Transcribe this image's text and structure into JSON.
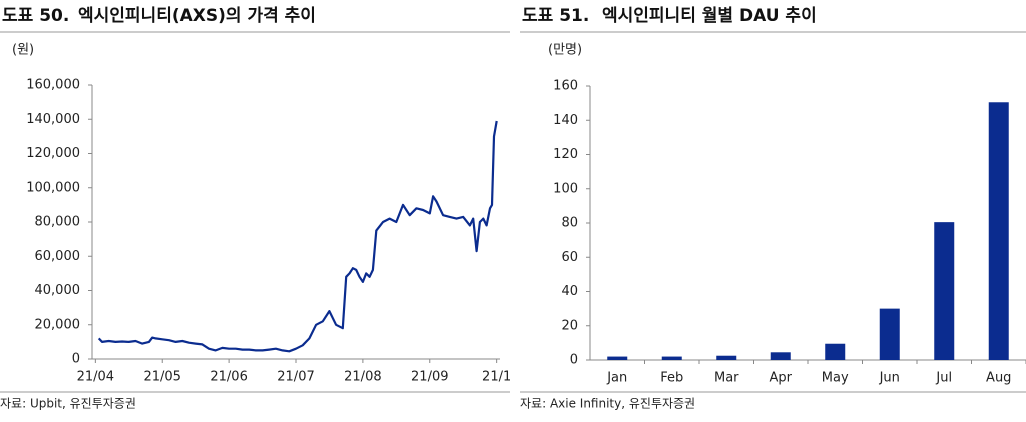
{
  "chart_data": [
    {
      "type": "line",
      "figure": "도표 50.",
      "title": "엑시인피니티(AXS)의 가격 추이",
      "y_unit": "(원)",
      "source": "자료: Upbit, 유진투자증권",
      "x": [
        0.05,
        0.1,
        0.2,
        0.3,
        0.4,
        0.5,
        0.6,
        0.7,
        0.8,
        0.85,
        0.9,
        1.0,
        1.1,
        1.2,
        1.3,
        1.4,
        1.5,
        1.6,
        1.7,
        1.8,
        1.9,
        2.0,
        2.1,
        2.2,
        2.3,
        2.4,
        2.5,
        2.6,
        2.7,
        2.8,
        2.9,
        3.0,
        3.1,
        3.2,
        3.3,
        3.4,
        3.5,
        3.6,
        3.7,
        3.75,
        3.8,
        3.85,
        3.9,
        3.95,
        4.0,
        4.05,
        4.1,
        4.15,
        4.2,
        4.3,
        4.4,
        4.5,
        4.6,
        4.7,
        4.8,
        4.9,
        5.0,
        5.05,
        5.1,
        5.2,
        5.3,
        5.4,
        5.5,
        5.6,
        5.65,
        5.7,
        5.75,
        5.8,
        5.85,
        5.9,
        5.93,
        5.96,
        6.0
      ],
      "series": [
        {
          "name": "AXS",
          "color": "#0b2c8f",
          "values": [
            12000,
            10000,
            10500,
            10000,
            10200,
            10000,
            10500,
            9000,
            10000,
            12500,
            12000,
            11500,
            11000,
            10000,
            10500,
            9500,
            9000,
            8500,
            6000,
            5000,
            6500,
            6000,
            6000,
            5500,
            5500,
            5000,
            5000,
            5500,
            6000,
            5000,
            4500,
            6000,
            8000,
            12000,
            20000,
            22000,
            28000,
            20000,
            18000,
            48000,
            50000,
            53000,
            52000,
            48000,
            45000,
            50000,
            48000,
            52000,
            75000,
            80000,
            82000,
            80000,
            90000,
            84000,
            88000,
            87000,
            85000,
            95000,
            92000,
            84000,
            83000,
            82000,
            83000,
            78000,
            82000,
            63000,
            80000,
            82000,
            78000,
            88000,
            90000,
            130000,
            139000
          ]
        }
      ],
      "xlim": [
        -0.05,
        6.05
      ],
      "xticks": [
        {
          "value": 0,
          "label": "21/04"
        },
        {
          "value": 1,
          "label": "21/05"
        },
        {
          "value": 2,
          "label": "21/06"
        },
        {
          "value": 3,
          "label": "21/07"
        },
        {
          "value": 4,
          "label": "21/08"
        },
        {
          "value": 5,
          "label": "21/09"
        },
        {
          "value": 6,
          "label": "21/1"
        }
      ],
      "ylim": [
        0,
        160000
      ],
      "yticks": [
        0,
        {
          "value": 20000,
          "label": "20,000"
        },
        {
          "value": 40000,
          "label": "40,000"
        },
        {
          "value": 60000,
          "label": "60,000"
        },
        {
          "value": 80000,
          "label": "80,000"
        },
        {
          "value": 100000,
          "label": "100,000"
        },
        {
          "value": 120000,
          "label": "120,000"
        },
        {
          "value": 140000,
          "label": "140,000"
        },
        {
          "value": 160000,
          "label": "160,000"
        }
      ]
    },
    {
      "type": "bar",
      "figure": "도표 51.",
      "title": "엑시인피니티 월별 DAU 추이",
      "y_unit": "(만명)",
      "source": "자료: Axie Infinity, 유진투자증권",
      "categories": [
        "Jan",
        "Feb",
        "Mar",
        "Apr",
        "May",
        "Jun",
        "Jul",
        "Aug"
      ],
      "series": [
        {
          "name": "DAU",
          "color": "#0b2c8f",
          "values": [
            2,
            2,
            2.5,
            4.5,
            9.5,
            30,
            80.5,
            150.5
          ]
        }
      ],
      "ylim": [
        0,
        160
      ],
      "yticks": [
        0,
        20,
        40,
        60,
        80,
        100,
        120,
        140,
        160
      ]
    }
  ]
}
